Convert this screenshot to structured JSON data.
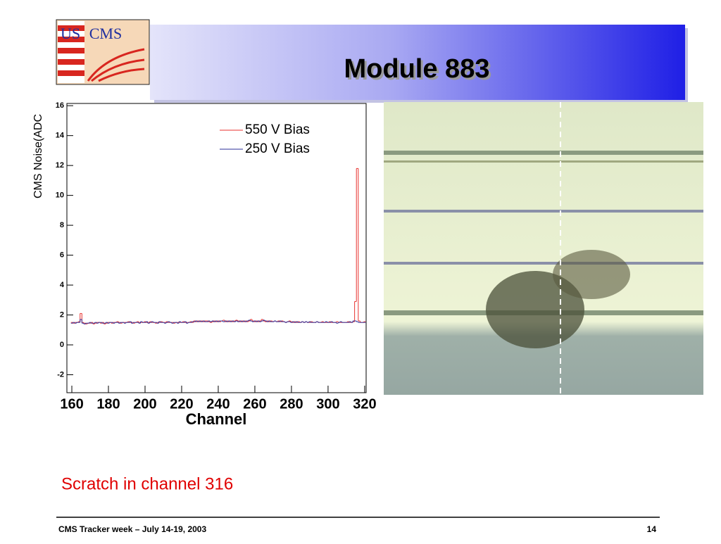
{
  "header": {
    "title": "Module 883",
    "logo_left": "US",
    "logo_right": "CMS"
  },
  "caption": "Scratch in channel 316",
  "footer": {
    "left": "CMS Tracker week – July 14-19, 2003",
    "page": "14"
  },
  "chart_data": {
    "type": "step",
    "x_label": "Channel",
    "y_label": "CMS Noise(ADC",
    "xlim": [
      157.3,
      320.8
    ],
    "ylim": [
      -3.2,
      16.15
    ],
    "xticks": [
      160,
      180,
      200,
      220,
      240,
      260,
      280,
      300,
      320
    ],
    "yticks": [
      -2,
      0,
      2,
      4,
      6,
      8,
      10,
      12,
      14,
      16
    ],
    "legend": "upper right",
    "x": [
      160,
      161,
      162,
      163,
      164,
      165,
      166,
      167,
      168,
      169,
      170,
      171,
      172,
      173,
      174,
      175,
      176,
      177,
      178,
      179,
      180,
      181,
      182,
      183,
      184,
      185,
      186,
      187,
      188,
      189,
      190,
      191,
      192,
      193,
      194,
      195,
      196,
      197,
      198,
      199,
      200,
      201,
      202,
      203,
      204,
      205,
      206,
      207,
      208,
      209,
      210,
      211,
      212,
      213,
      214,
      215,
      216,
      217,
      218,
      219,
      220,
      221,
      222,
      223,
      224,
      225,
      226,
      227,
      228,
      229,
      230,
      231,
      232,
      233,
      234,
      235,
      236,
      237,
      238,
      239,
      240,
      241,
      242,
      243,
      244,
      245,
      246,
      247,
      248,
      249,
      250,
      251,
      252,
      253,
      254,
      255,
      256,
      257,
      258,
      259,
      260,
      261,
      262,
      263,
      264,
      265,
      266,
      267,
      268,
      269,
      270,
      271,
      272,
      273,
      274,
      275,
      276,
      277,
      278,
      279,
      280,
      281,
      282,
      283,
      284,
      285,
      286,
      287,
      288,
      289,
      290,
      291,
      292,
      293,
      294,
      295,
      296,
      297,
      298,
      299,
      300,
      301,
      302,
      303,
      304,
      305,
      306,
      307,
      308,
      309,
      310,
      311,
      312,
      313,
      314,
      315,
      316,
      317,
      318,
      319,
      320
    ],
    "series": [
      {
        "name": "550 V Bias",
        "color": "#e8322f",
        "values": [
          1.5,
          1.45,
          1.5,
          1.5,
          1.55,
          2.1,
          1.5,
          1.45,
          1.4,
          1.45,
          1.45,
          1.5,
          1.4,
          1.45,
          1.5,
          1.5,
          1.45,
          1.5,
          1.4,
          1.45,
          1.5,
          1.5,
          1.45,
          1.5,
          1.5,
          1.55,
          1.5,
          1.45,
          1.5,
          1.5,
          1.5,
          1.55,
          1.5,
          1.5,
          1.45,
          1.5,
          1.55,
          1.5,
          1.5,
          1.5,
          1.55,
          1.5,
          1.5,
          1.55,
          1.5,
          1.5,
          1.45,
          1.5,
          1.5,
          1.55,
          1.5,
          1.5,
          1.55,
          1.5,
          1.5,
          1.5,
          1.45,
          1.5,
          1.5,
          1.5,
          1.5,
          1.55,
          1.5,
          1.5,
          1.5,
          1.55,
          1.5,
          1.6,
          1.55,
          1.6,
          1.55,
          1.6,
          1.55,
          1.6,
          1.6,
          1.55,
          1.5,
          1.55,
          1.6,
          1.55,
          1.6,
          1.55,
          1.6,
          1.65,
          1.55,
          1.6,
          1.55,
          1.6,
          1.55,
          1.6,
          1.65,
          1.6,
          1.55,
          1.6,
          1.55,
          1.6,
          1.55,
          1.6,
          1.7,
          1.6,
          1.55,
          1.6,
          1.55,
          1.6,
          1.7,
          1.6,
          1.55,
          1.6,
          1.55,
          1.6,
          1.55,
          1.6,
          1.55,
          1.6,
          1.55,
          1.6,
          1.55,
          1.5,
          1.55,
          1.6,
          1.55,
          1.5,
          1.55,
          1.5,
          1.55,
          1.5,
          1.55,
          1.5,
          1.55,
          1.5,
          1.5,
          1.55,
          1.5,
          1.5,
          1.55,
          1.5,
          1.5,
          1.55,
          1.5,
          1.5,
          1.5,
          1.55,
          1.5,
          1.5,
          1.5,
          1.55,
          1.5,
          1.5,
          1.5,
          1.5,
          1.5,
          1.55,
          1.5,
          1.5,
          1.55,
          2.9,
          11.8,
          1.6,
          1.5,
          1.5,
          1.55
        ]
      },
      {
        "name": "250 V Bias",
        "color": "#2b2f9a",
        "values": [
          1.45,
          1.5,
          1.45,
          1.5,
          1.5,
          1.7,
          1.45,
          1.4,
          1.45,
          1.45,
          1.5,
          1.45,
          1.45,
          1.5,
          1.45,
          1.5,
          1.5,
          1.45,
          1.45,
          1.5,
          1.45,
          1.5,
          1.5,
          1.45,
          1.5,
          1.5,
          1.45,
          1.5,
          1.5,
          1.45,
          1.5,
          1.5,
          1.55,
          1.45,
          1.5,
          1.5,
          1.5,
          1.45,
          1.55,
          1.5,
          1.5,
          1.55,
          1.45,
          1.5,
          1.55,
          1.5,
          1.5,
          1.45,
          1.55,
          1.5,
          1.5,
          1.45,
          1.5,
          1.55,
          1.5,
          1.45,
          1.5,
          1.5,
          1.45,
          1.55,
          1.5,
          1.5,
          1.55,
          1.45,
          1.5,
          1.5,
          1.55,
          1.55,
          1.6,
          1.55,
          1.6,
          1.55,
          1.6,
          1.55,
          1.55,
          1.6,
          1.55,
          1.6,
          1.55,
          1.6,
          1.55,
          1.6,
          1.6,
          1.55,
          1.6,
          1.55,
          1.6,
          1.55,
          1.6,
          1.55,
          1.6,
          1.55,
          1.6,
          1.55,
          1.6,
          1.55,
          1.6,
          1.65,
          1.6,
          1.55,
          1.6,
          1.55,
          1.6,
          1.55,
          1.6,
          1.65,
          1.6,
          1.55,
          1.6,
          1.55,
          1.55,
          1.6,
          1.55,
          1.55,
          1.6,
          1.55,
          1.55,
          1.5,
          1.55,
          1.55,
          1.5,
          1.55,
          1.5,
          1.55,
          1.5,
          1.5,
          1.55,
          1.5,
          1.55,
          1.5,
          1.55,
          1.5,
          1.5,
          1.5,
          1.55,
          1.5,
          1.5,
          1.5,
          1.5,
          1.55,
          1.5,
          1.5,
          1.55,
          1.5,
          1.5,
          1.45,
          1.5,
          1.55,
          1.5,
          1.5,
          1.5,
          1.5,
          1.55,
          1.5,
          1.6,
          1.6,
          1.55,
          1.5,
          1.5,
          1.5,
          1.5
        ]
      }
    ]
  }
}
